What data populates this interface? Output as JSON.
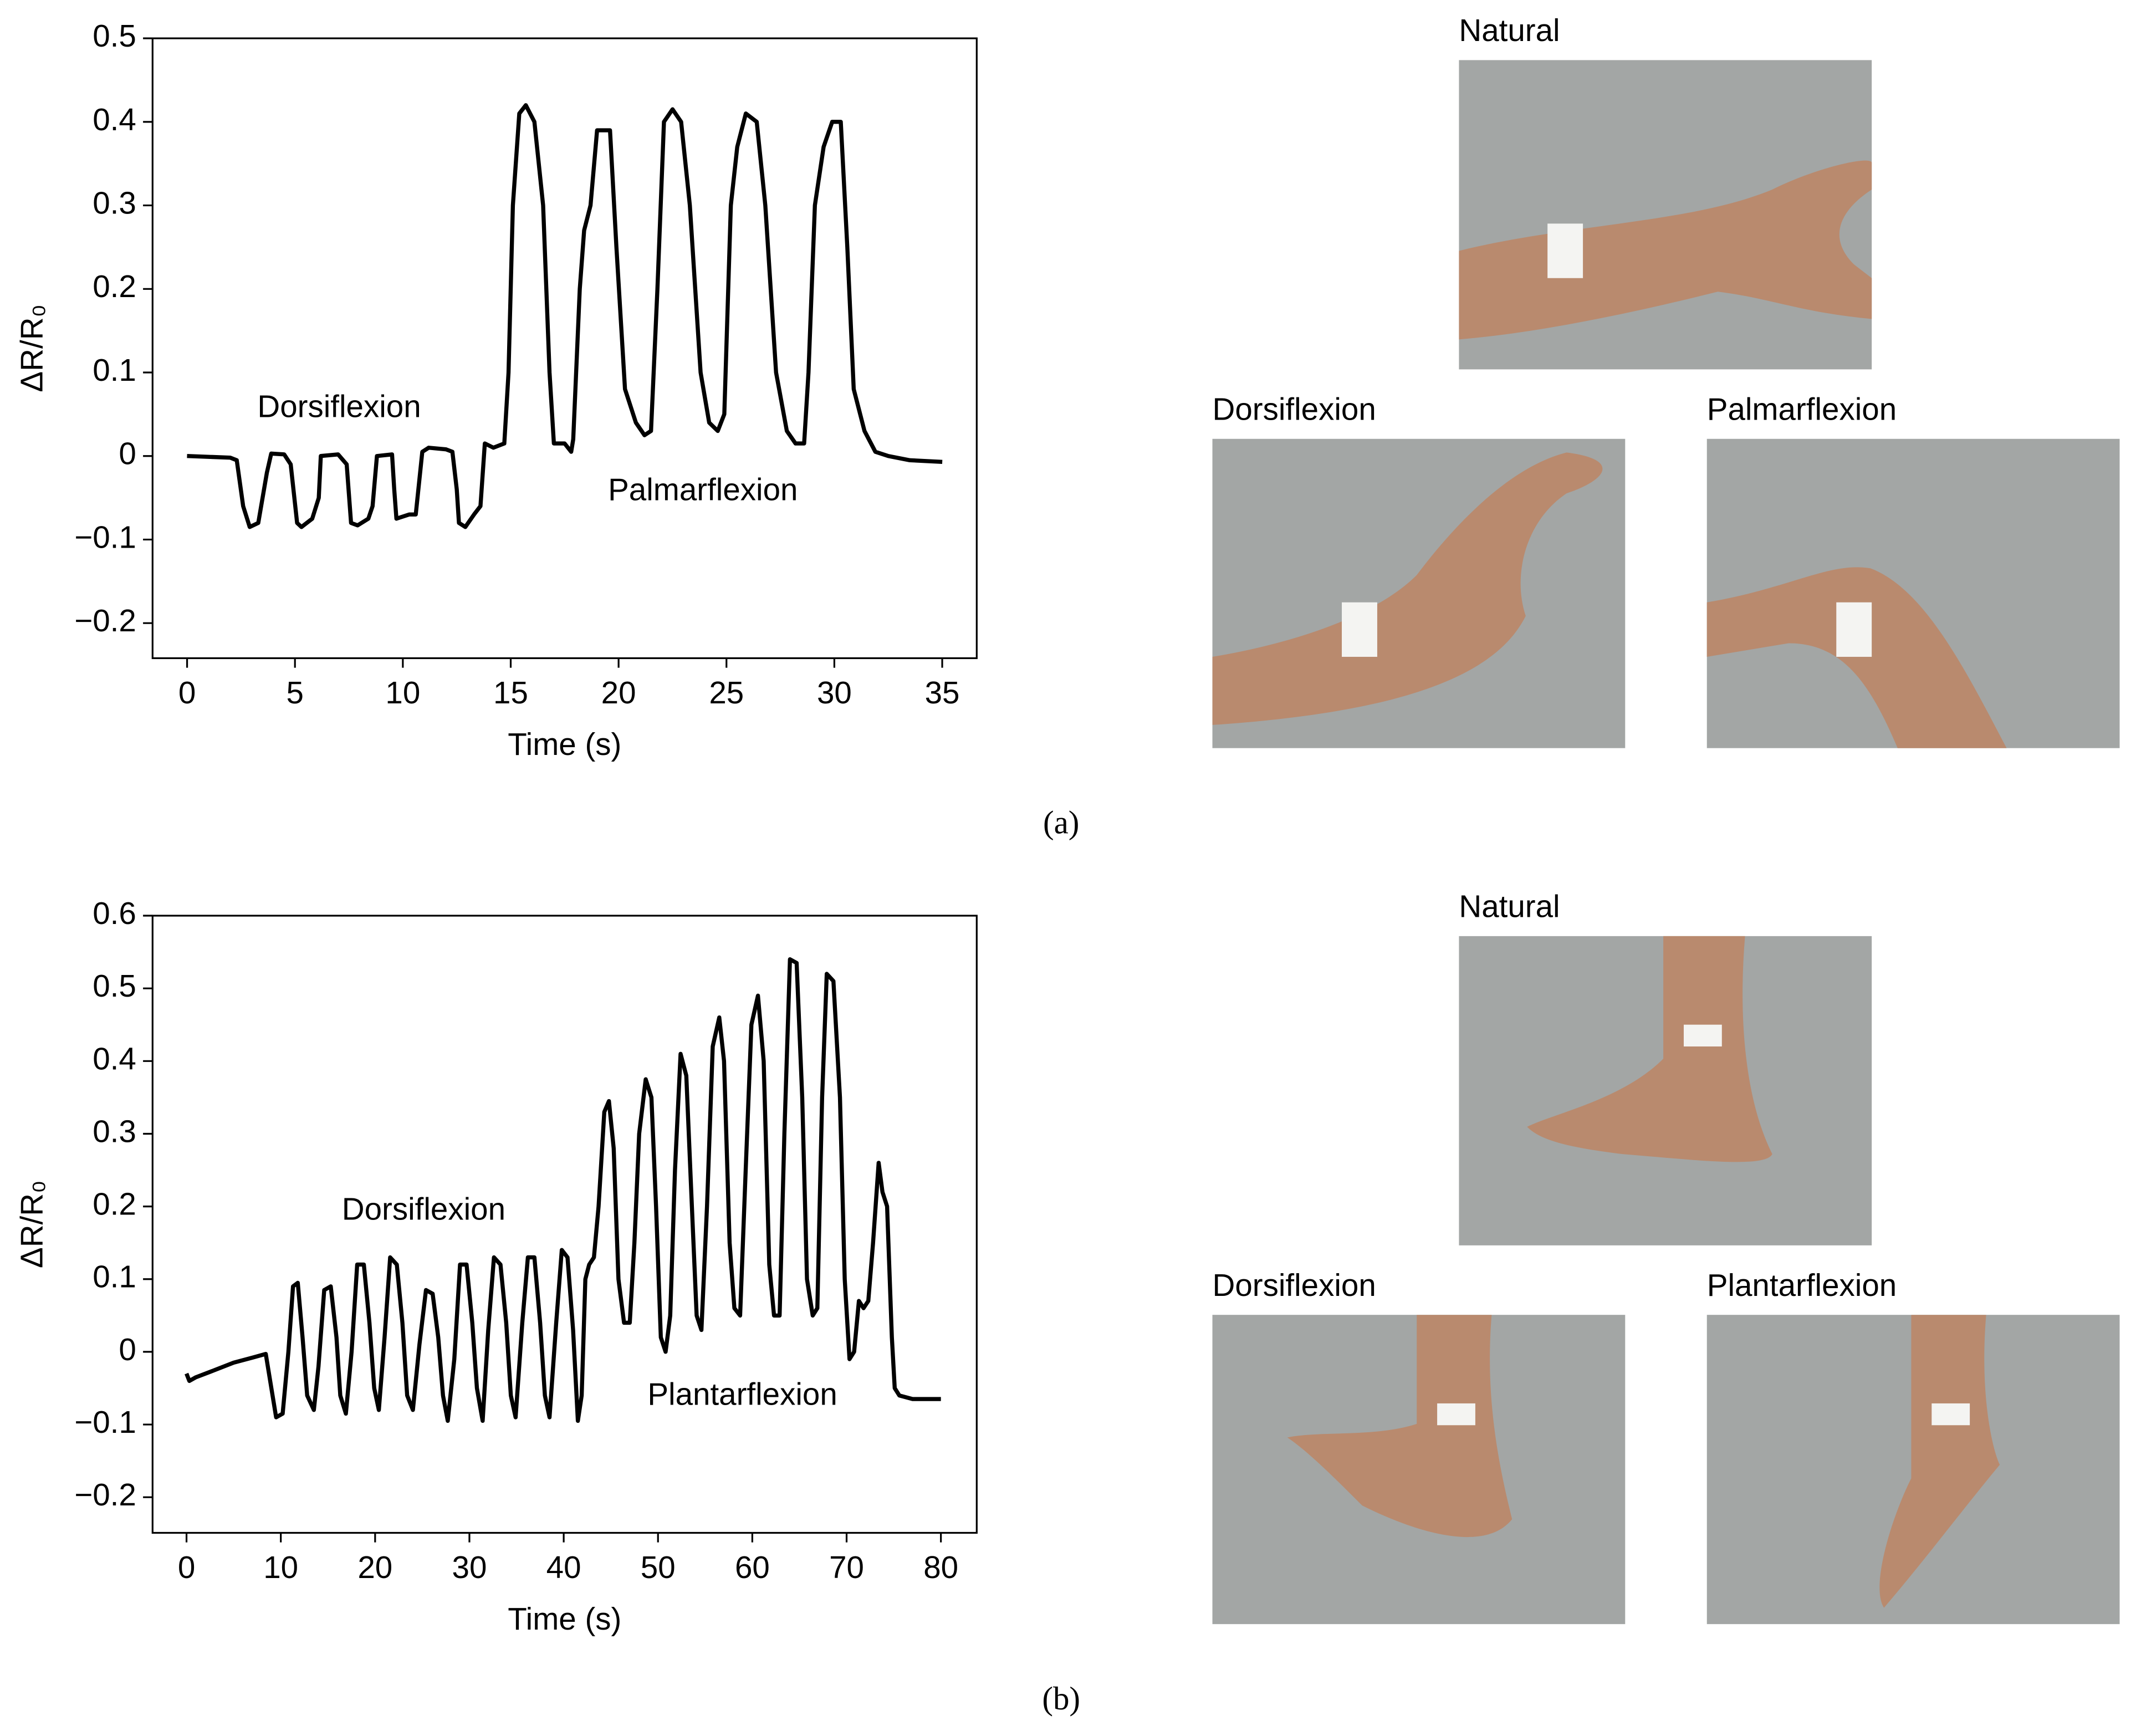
{
  "chart_data": [
    {
      "type": "line",
      "x_label": "Time (s)",
      "y_label": "ΔR/R₀",
      "color": "#000000",
      "annotations": [
        "Dorsiflexion",
        "Palmarflexion"
      ],
      "annotation_color": "#ff1a1a",
      "xlim": [
        -1.6,
        36.6
      ],
      "ylim": [
        -0.242,
        0.5
      ],
      "xticks": [
        0,
        5,
        10,
        15,
        20,
        25,
        30,
        35
      ],
      "yticks": [
        {
          "value": -0.2,
          "label": "−0.2"
        },
        {
          "value": -0.1,
          "label": "−0.1"
        },
        0,
        0.1,
        0.2,
        0.3,
        0.4,
        0.5
      ],
      "x": [
        0,
        2,
        2.3,
        2.6,
        2.9,
        3.3,
        3.7,
        3.9,
        4.5,
        4.8,
        5.1,
        5.3,
        5.8,
        6.1,
        6.2,
        7,
        7.4,
        7.6,
        7.9,
        8.4,
        8.6,
        8.8,
        9.5,
        9.6,
        9.7,
        10.3,
        10.6,
        10.9,
        11.2,
        12,
        12.3,
        12.5,
        12.6,
        12.9,
        13.3,
        13.6,
        13.8,
        14.2,
        14.7,
        14.9,
        15.1,
        15.4,
        15.7,
        16.1,
        16.5,
        16.8,
        17,
        17.5,
        17.8,
        17.9,
        18.2,
        18.4,
        18.7,
        19,
        19.3,
        19.6,
        19.9,
        20.3,
        20.8,
        21.2,
        21.5,
        21.8,
        22.1,
        22.5,
        22.9,
        23.3,
        23.8,
        24.2,
        24.6,
        24.9,
        25.2,
        25.5,
        25.9,
        26.4,
        26.8,
        27.3,
        27.8,
        28.2,
        28.6,
        28.8,
        29.1,
        29.5,
        29.9,
        30.3,
        30.6,
        30.9,
        31.4,
        31.9,
        32.5,
        33.5,
        35
      ],
      "values": [
        0,
        -0.002,
        -0.005,
        -0.06,
        -0.085,
        -0.08,
        -0.02,
        0.003,
        0.002,
        -0.01,
        -0.08,
        -0.085,
        -0.075,
        -0.05,
        0,
        0.002,
        -0.01,
        -0.08,
        -0.083,
        -0.075,
        -0.06,
        0,
        0.002,
        -0.04,
        -0.075,
        -0.07,
        -0.07,
        0.005,
        0.01,
        0.008,
        0.005,
        -0.04,
        -0.08,
        -0.085,
        -0.07,
        -0.06,
        0.015,
        0.01,
        0.015,
        0.1,
        0.3,
        0.41,
        0.42,
        0.4,
        0.3,
        0.1,
        0.015,
        0.015,
        0.005,
        0.02,
        0.2,
        0.27,
        0.3,
        0.39,
        0.39,
        0.39,
        0.25,
        0.08,
        0.04,
        0.025,
        0.03,
        0.2,
        0.4,
        0.415,
        0.4,
        0.3,
        0.1,
        0.04,
        0.03,
        0.05,
        0.3,
        0.37,
        0.41,
        0.4,
        0.3,
        0.1,
        0.03,
        0.015,
        0.015,
        0.1,
        0.3,
        0.37,
        0.4,
        0.4,
        0.25,
        0.08,
        0.03,
        0.005,
        0,
        -0.005,
        -0.007
      ]
    },
    {
      "type": "line",
      "x_label": "Time (s)",
      "y_label": "ΔR/R₀",
      "color": "#000000",
      "annotations": [
        "Dorsiflexion",
        "Plantarflexion"
      ],
      "annotation_color": "#ff1a1a",
      "xlim": [
        -3.6,
        83.8
      ],
      "ylim": [
        -0.249,
        0.6
      ],
      "xticks": [
        0,
        10,
        20,
        30,
        40,
        50,
        60,
        70,
        80
      ],
      "yticks": [
        {
          "value": -0.2,
          "label": "−0.2"
        },
        {
          "value": -0.1,
          "label": "−0.1"
        },
        0,
        0.1,
        0.2,
        0.3,
        0.4,
        0.5,
        0.6
      ],
      "x": [
        0,
        0.3,
        1,
        3,
        5,
        7,
        8.4,
        9,
        9.5,
        10.2,
        10.8,
        11.3,
        11.8,
        12.3,
        12.8,
        13.5,
        14,
        14.6,
        15.3,
        15.9,
        16.3,
        16.9,
        17.5,
        18.1,
        18.8,
        19.4,
        19.9,
        20.4,
        21,
        21.6,
        22.3,
        22.9,
        23.4,
        24,
        24.7,
        25.4,
        26.1,
        26.7,
        27.2,
        27.7,
        28.4,
        29,
        29.7,
        30.3,
        30.8,
        31.4,
        32,
        32.6,
        33.3,
        33.9,
        34.4,
        34.9,
        35.6,
        36.2,
        36.9,
        37.5,
        38,
        38.5,
        39.2,
        39.8,
        40.4,
        41,
        41.5,
        41.9,
        42.3,
        42.7,
        43.2,
        43.7,
        44.3,
        44.8,
        45.3,
        45.8,
        46.4,
        47,
        47.5,
        48,
        48.7,
        49.3,
        49.8,
        50.3,
        50.8,
        51.3,
        51.8,
        52.4,
        53,
        53.6,
        54.1,
        54.6,
        55.2,
        55.8,
        56.5,
        57,
        57.6,
        58.1,
        58.7,
        59.3,
        59.9,
        60.6,
        61.2,
        61.8,
        62.3,
        62.9,
        63.4,
        64,
        64.7,
        65.3,
        65.8,
        66.4,
        66.9,
        67.4,
        67.9,
        68.6,
        69.3,
        69.8,
        70.3,
        70.8,
        71.3,
        71.8,
        72.3,
        72.8,
        73.4,
        73.8,
        74.3,
        74.8,
        75.1,
        75.6,
        77,
        80
      ],
      "values": [
        -0.03,
        -0.04,
        -0.035,
        -0.025,
        -0.015,
        -0.008,
        -0.003,
        -0.05,
        -0.09,
        -0.085,
        0,
        0.09,
        0.095,
        0.02,
        -0.06,
        -0.08,
        -0.02,
        0.085,
        0.09,
        0.02,
        -0.06,
        -0.085,
        0,
        0.12,
        0.12,
        0.04,
        -0.05,
        -0.08,
        0.02,
        0.13,
        0.12,
        0.04,
        -0.06,
        -0.08,
        0.01,
        0.085,
        0.08,
        0.02,
        -0.06,
        -0.095,
        -0.01,
        0.12,
        0.12,
        0.04,
        -0.05,
        -0.095,
        0.03,
        0.13,
        0.12,
        0.04,
        -0.06,
        -0.09,
        0.04,
        0.13,
        0.13,
        0.04,
        -0.06,
        -0.09,
        0.04,
        0.14,
        0.13,
        0.03,
        -0.095,
        -0.06,
        0.1,
        0.12,
        0.13,
        0.2,
        0.33,
        0.345,
        0.28,
        0.1,
        0.04,
        0.04,
        0.15,
        0.3,
        0.375,
        0.35,
        0.2,
        0.02,
        0,
        0.05,
        0.25,
        0.41,
        0.38,
        0.2,
        0.05,
        0.03,
        0.2,
        0.42,
        0.46,
        0.4,
        0.15,
        0.06,
        0.05,
        0.25,
        0.45,
        0.49,
        0.4,
        0.12,
        0.05,
        0.05,
        0.3,
        0.54,
        0.535,
        0.35,
        0.1,
        0.05,
        0.06,
        0.35,
        0.52,
        0.51,
        0.35,
        0.1,
        -0.01,
        0,
        0.07,
        0.06,
        0.07,
        0.15,
        0.26,
        0.22,
        0.2,
        0.02,
        -0.05,
        -0.06,
        -0.065,
        -0.065
      ]
    }
  ],
  "panels": [
    {
      "label": "(a)",
      "photos": [
        "Natural",
        "Dorsiflexion",
        "Palmarflexion"
      ]
    },
    {
      "label": "(b)",
      "photos": [
        "Natural",
        "Dorsiflexion",
        "Plantarflexion"
      ]
    }
  ]
}
